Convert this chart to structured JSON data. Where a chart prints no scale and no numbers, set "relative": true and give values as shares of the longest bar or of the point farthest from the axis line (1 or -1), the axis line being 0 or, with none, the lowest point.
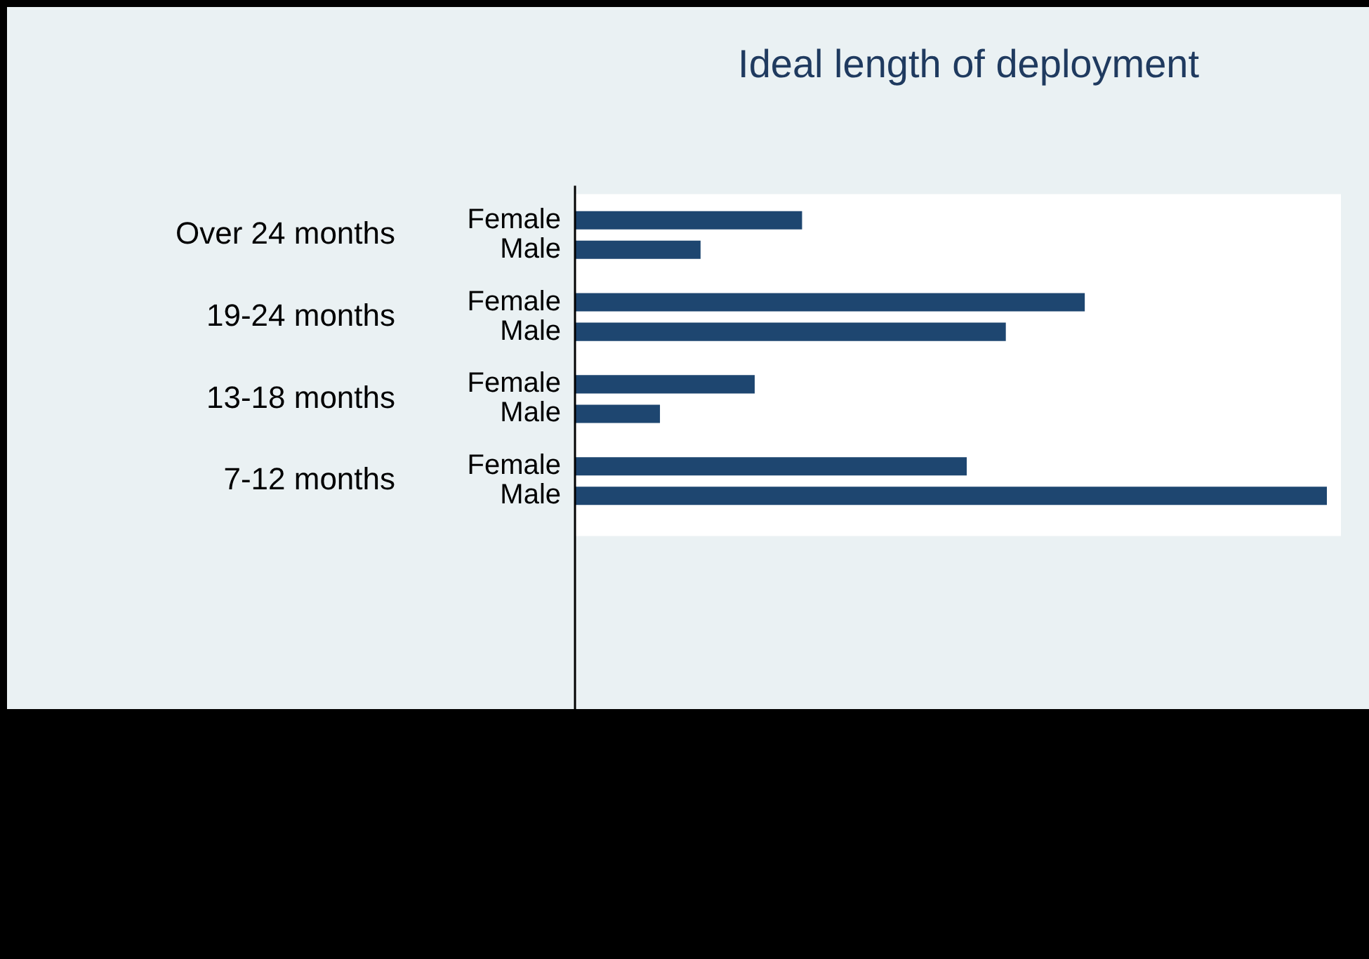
{
  "chart_data": {
    "type": "bar",
    "orientation": "horizontal",
    "relative": true,
    "title": "Ideal length of deployment",
    "categories": [
      "Over 24 months",
      "19-24 months",
      "13-18 months",
      "7-12 months"
    ],
    "series": [
      {
        "name": "Female",
        "color": "#1e4670",
        "values": [
          0.302,
          0.678,
          0.239,
          0.521
        ]
      },
      {
        "name": "Male",
        "color": "#1e4670",
        "values": [
          0.167,
          0.573,
          0.113,
          1
        ]
      }
    ],
    "legend": false
  }
}
